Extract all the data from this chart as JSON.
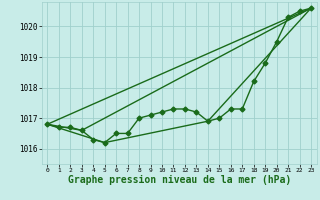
{
  "background_color": "#c8ece8",
  "grid_color": "#a0d0cc",
  "line_color": "#1a6b1a",
  "xlabel": "Graphe pression niveau de la mer (hPa)",
  "xlabel_fontsize": 7,
  "xlim": [
    -0.5,
    23.5
  ],
  "ylim": [
    1015.5,
    1020.8
  ],
  "yticks": [
    1016,
    1017,
    1018,
    1019,
    1020
  ],
  "ytick_labels": [
    "1016",
    "1017",
    "1018",
    "1019",
    "1020"
  ],
  "xticks": [
    0,
    1,
    2,
    3,
    4,
    5,
    6,
    7,
    8,
    9,
    10,
    11,
    12,
    13,
    14,
    15,
    16,
    17,
    18,
    19,
    20,
    21,
    22,
    23
  ],
  "series": [
    {
      "x": [
        0,
        1,
        2,
        3,
        4,
        5,
        6,
        7,
        8,
        9,
        10,
        11,
        12,
        13,
        14,
        15,
        16,
        17,
        18,
        19,
        20,
        21,
        22,
        23
      ],
      "y": [
        1016.8,
        1016.7,
        1016.7,
        1016.6,
        1016.3,
        1016.2,
        1016.5,
        1016.5,
        1017.0,
        1017.1,
        1017.2,
        1017.3,
        1017.3,
        1017.2,
        1016.9,
        1017.0,
        1017.3,
        1017.3,
        1018.2,
        1018.8,
        1019.5,
        1020.3,
        1020.5,
        1020.6
      ],
      "marker": "D",
      "markersize": 2.5,
      "linewidth": 1.0
    },
    {
      "x": [
        0,
        23
      ],
      "y": [
        1016.8,
        1020.6
      ],
      "marker": null,
      "markersize": 0,
      "linewidth": 1.0
    },
    {
      "x": [
        0,
        3,
        23
      ],
      "y": [
        1016.8,
        1016.6,
        1020.6
      ],
      "marker": null,
      "markersize": 0,
      "linewidth": 1.0
    },
    {
      "x": [
        0,
        5,
        14,
        23
      ],
      "y": [
        1016.8,
        1016.2,
        1016.9,
        1020.6
      ],
      "marker": null,
      "markersize": 0,
      "linewidth": 1.0
    }
  ]
}
